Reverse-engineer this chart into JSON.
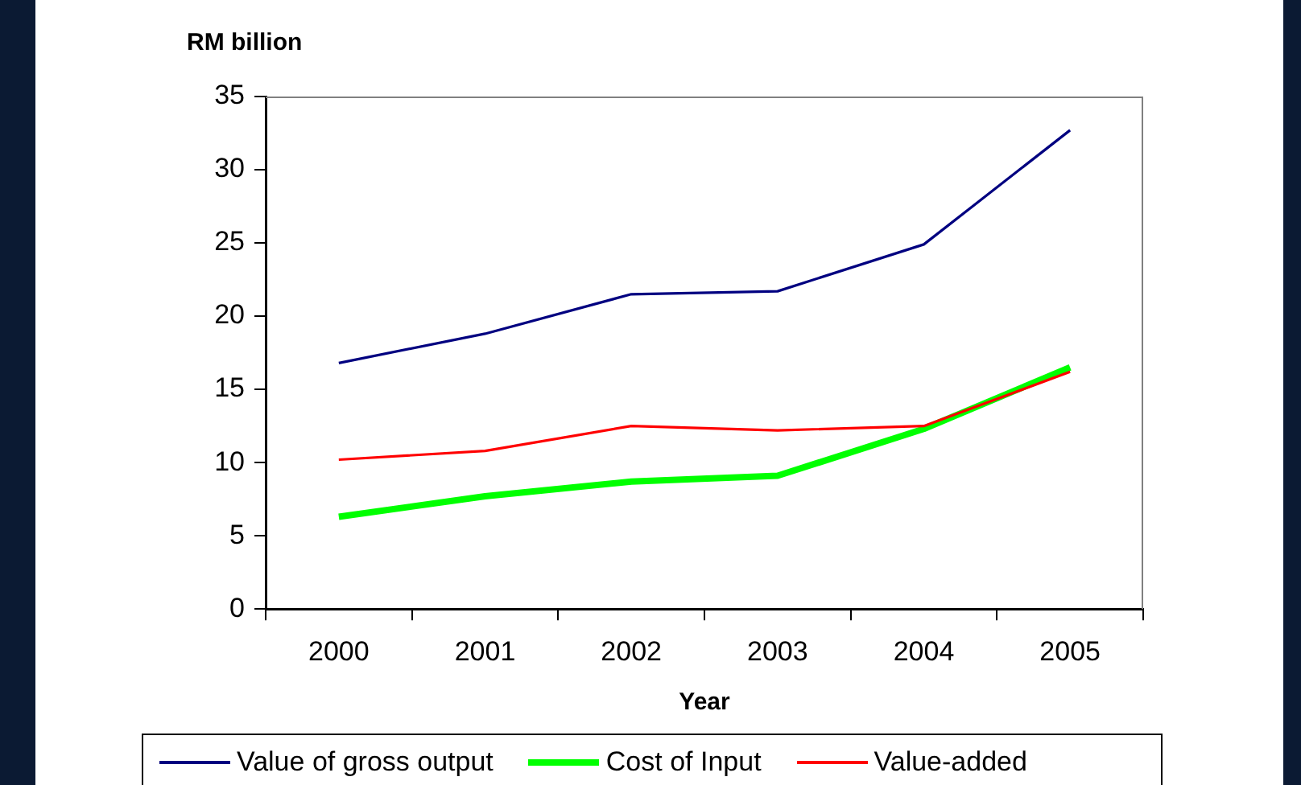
{
  "chart_data": {
    "type": "line",
    "ylabel": "RM billion",
    "xlabel": "Year",
    "categories": [
      "2000",
      "2001",
      "2002",
      "2003",
      "2004",
      "2005"
    ],
    "series": [
      {
        "name": "Value of gross output",
        "color": "#000080",
        "values": [
          16.8,
          18.8,
          21.5,
          21.7,
          24.9,
          32.7
        ]
      },
      {
        "name": "Cost of Input",
        "color": "#00ff00",
        "values": [
          6.3,
          7.7,
          8.7,
          9.1,
          12.3,
          16.5
        ]
      },
      {
        "name": "Value-added",
        "color": "#ff0000",
        "values": [
          10.2,
          10.8,
          12.5,
          12.2,
          12.5,
          16.2
        ]
      }
    ],
    "ylim": [
      0,
      35
    ],
    "yticks": [
      0,
      5,
      10,
      15,
      20,
      25,
      30,
      35
    ],
    "grid": false,
    "legend": "bottom",
    "marker": "none",
    "line_style": "solid"
  }
}
